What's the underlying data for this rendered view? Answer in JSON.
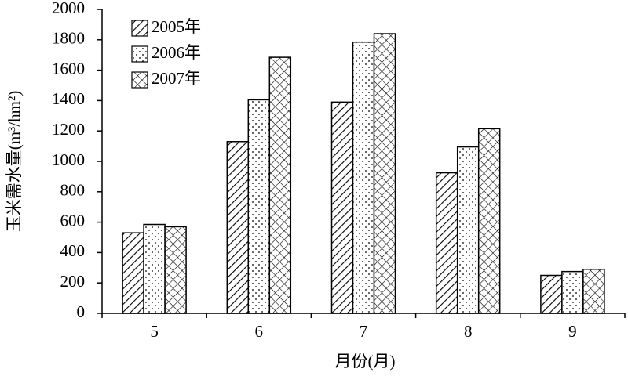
{
  "chart_data": {
    "type": "bar",
    "x_label": "月份(月)",
    "y_label": "玉米需水量(m³/hm²)",
    "categories": [
      "5",
      "6",
      "7",
      "8",
      "9"
    ],
    "series": [
      {
        "name": "2005年",
        "color": "#000000",
        "pattern": "diagonal",
        "values": [
          530,
          1130,
          1390,
          925,
          250
        ]
      },
      {
        "name": "2006年",
        "color": "#000000",
        "pattern": "dots",
        "values": [
          585,
          1405,
          1785,
          1095,
          275
        ]
      },
      {
        "name": "2007年",
        "color": "#000000",
        "pattern": "crosshatch",
        "values": [
          570,
          1685,
          1840,
          1215,
          290
        ]
      }
    ],
    "ylim": [
      0,
      2000
    ],
    "yticks": [
      0,
      200,
      400,
      600,
      800,
      1000,
      1200,
      1400,
      1600,
      1800,
      2000
    ],
    "grid": false,
    "legend": "top-left"
  }
}
